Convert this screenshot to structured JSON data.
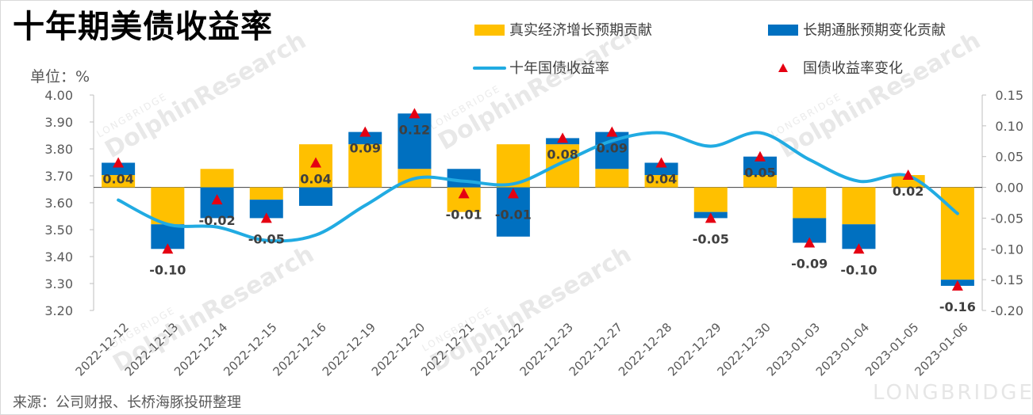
{
  "page": {
    "title": "十年期美债收益率",
    "unit": "单位：%",
    "source": "来源：公司财报、长桥海豚投研整理",
    "watermark": "DolphinResearch",
    "watermark_small": "LONGBRIDGE",
    "brand": "LONGBRIDGE"
  },
  "colors": {
    "real_growth": "#FFC000",
    "inflation": "#0070C0",
    "yield_line": "#21ABE2",
    "change_marker": "#E50012"
  },
  "chart_data": {
    "type": "bar+line",
    "title": "十年期美债收益率",
    "categories": [
      "2022-12-12",
      "2022-12-13",
      "2022-12-14",
      "2022-12-15",
      "2022-12-16",
      "2022-12-19",
      "2022-12-20",
      "2022-12-21",
      "2022-12-22",
      "2022-12-23",
      "2022-12-27",
      "2022-12-28",
      "2022-12-29",
      "2022-12-30",
      "2023-01-03",
      "2023-01-04",
      "2023-01-05",
      "2023-01-06"
    ],
    "left_axis": {
      "ylim": [
        3.2,
        4.0
      ],
      "ticks": [
        "4.00",
        "3.90",
        "3.80",
        "3.70",
        "3.60",
        "3.50",
        "3.40",
        "3.30",
        "3.20"
      ]
    },
    "right_axis": {
      "ylim": [
        -0.2,
        0.15
      ],
      "ticks": [
        "0.15",
        "0.10",
        "0.05",
        "0.00",
        "-0.05",
        "-0.10",
        "-0.15",
        "-0.20"
      ]
    },
    "series": [
      {
        "name": "真实经济增长预期贡献",
        "type": "bar",
        "axis": "right",
        "values": [
          0.02,
          -0.06,
          0.03,
          -0.02,
          0.07,
          0.07,
          0.03,
          -0.04,
          0.07,
          0.07,
          0.03,
          0.02,
          -0.04,
          0.02,
          -0.05,
          -0.06,
          0.02,
          -0.15
        ]
      },
      {
        "name": "长期通胀预期变化贡献",
        "type": "bar",
        "axis": "right",
        "values": [
          0.02,
          -0.04,
          -0.05,
          -0.03,
          -0.03,
          0.02,
          0.09,
          0.03,
          -0.08,
          0.01,
          0.06,
          0.02,
          -0.01,
          0.03,
          -0.04,
          -0.04,
          0.0,
          -0.01
        ]
      },
      {
        "name": "十年国债收益率",
        "type": "line",
        "axis": "left",
        "values": [
          3.61,
          3.52,
          3.51,
          3.46,
          3.48,
          3.59,
          3.69,
          3.68,
          3.67,
          3.75,
          3.83,
          3.86,
          3.81,
          3.86,
          3.76,
          3.68,
          3.7,
          3.56
        ]
      },
      {
        "name": "国债收益率变化",
        "type": "marker",
        "axis": "right",
        "values": [
          0.04,
          -0.1,
          -0.02,
          -0.05,
          0.04,
          0.09,
          0.12,
          -0.01,
          -0.01,
          0.08,
          0.09,
          0.04,
          -0.05,
          0.05,
          -0.09,
          -0.1,
          0.02,
          -0.16
        ]
      }
    ],
    "data_labels": [
      "0.04",
      "-0.10",
      "-0.02",
      "-0.05",
      "0.04",
      "0.09",
      "0.12",
      "-0.01",
      "-0.01",
      "0.08",
      "0.09",
      "0.04",
      "-0.05",
      "0.05",
      "-0.09",
      "-0.10",
      "0.02",
      "-0.16"
    ],
    "legend_position": "top-right",
    "grid": false
  }
}
